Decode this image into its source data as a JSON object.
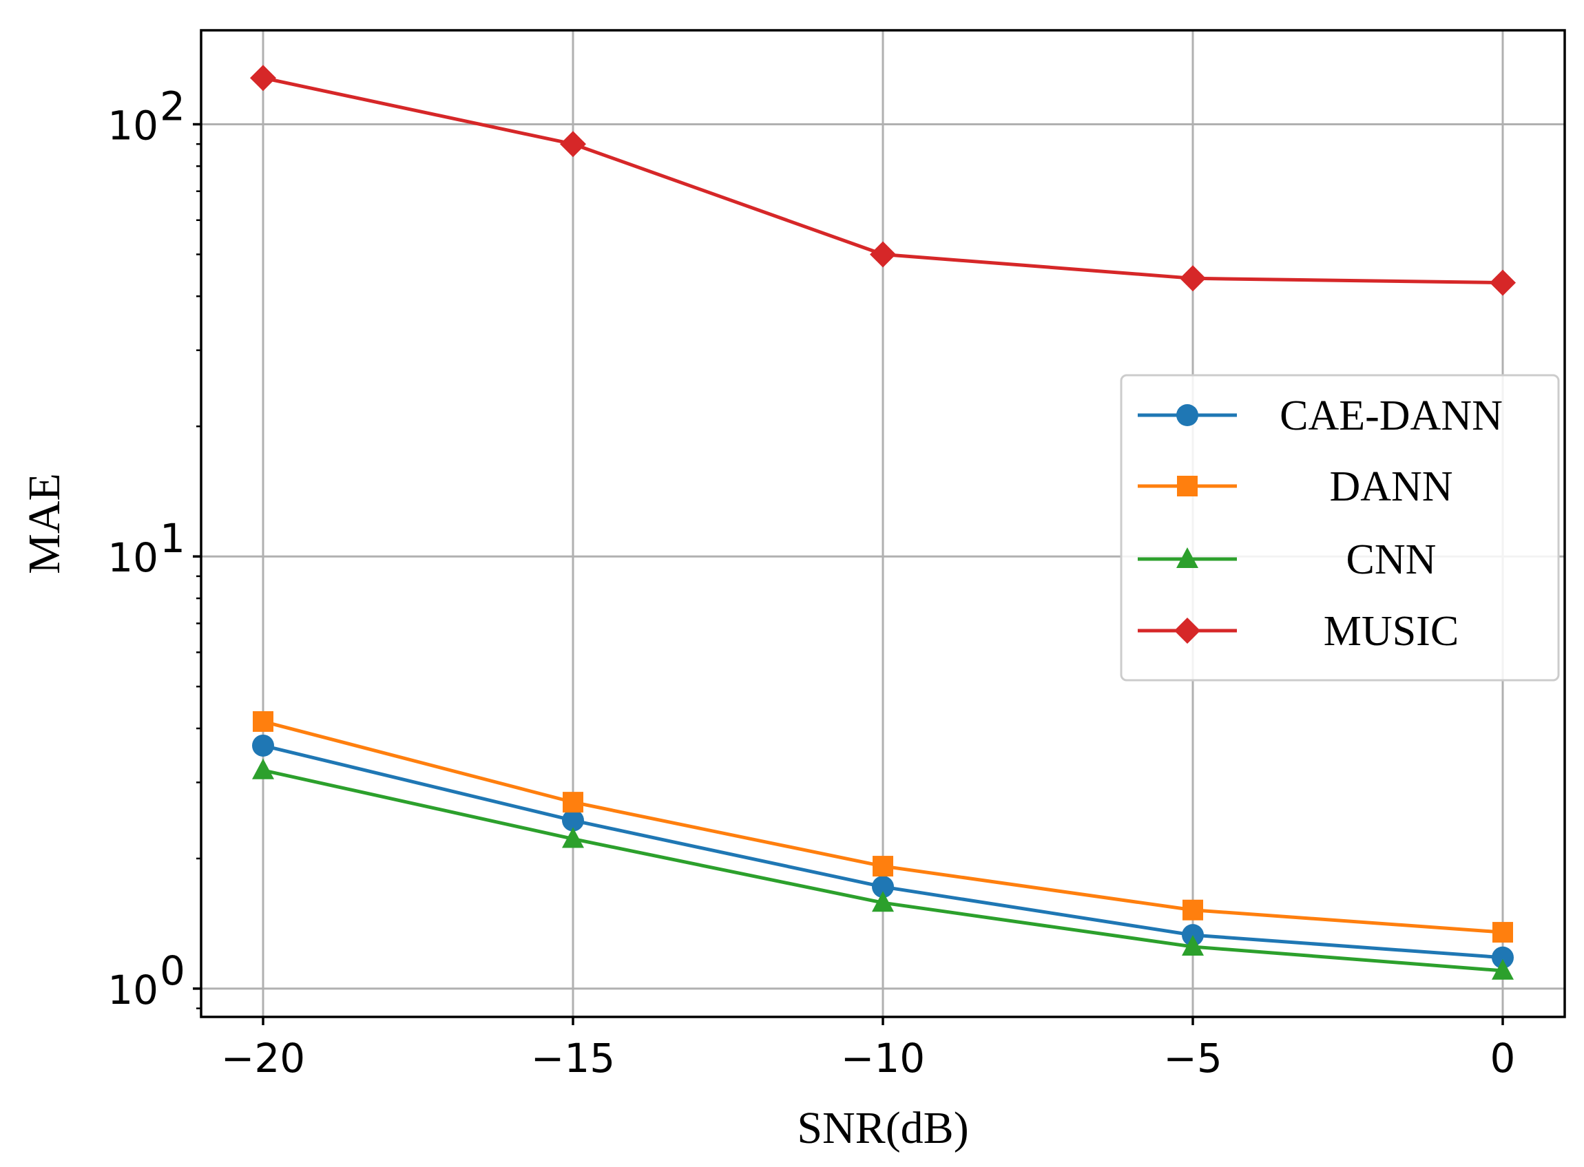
{
  "chart_data": {
    "type": "line",
    "title": "",
    "xlabel": "SNR(dB)",
    "ylabel": "MAE",
    "yscale": "log",
    "x": [
      -20,
      -15,
      -10,
      -5,
      0
    ],
    "xlim": [
      -21,
      1
    ],
    "ylim": [
      0.86,
      165
    ],
    "grid": true,
    "legend_position": "center-right",
    "x_ticks": [
      -20,
      -15,
      -10,
      -5,
      0
    ],
    "x_tick_labels": [
      "−20",
      "−15",
      "−10",
      "−5",
      "0"
    ],
    "y_ticks": [
      {
        "value": 1,
        "base": "10",
        "exponent": "0"
      },
      {
        "value": 10,
        "base": "10",
        "exponent": "1"
      },
      {
        "value": 100,
        "base": "10",
        "exponent": "2"
      }
    ],
    "series": [
      {
        "name": "CAE-DANN",
        "color": "#1f77b4",
        "marker": "circle",
        "values": [
          3.65,
          2.45,
          1.72,
          1.33,
          1.18
        ]
      },
      {
        "name": "DANN",
        "color": "#ff7f0e",
        "marker": "square",
        "values": [
          4.15,
          2.7,
          1.92,
          1.52,
          1.35
        ]
      },
      {
        "name": "CNN",
        "color": "#2ca02c",
        "marker": "triangle",
        "values": [
          3.2,
          2.22,
          1.58,
          1.25,
          1.1
        ]
      },
      {
        "name": "MUSIC",
        "color": "#d62728",
        "marker": "diamond",
        "values": [
          128,
          90,
          50,
          44,
          43
        ]
      }
    ]
  }
}
